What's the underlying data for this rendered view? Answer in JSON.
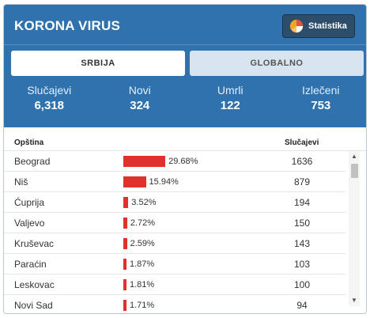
{
  "header": {
    "title": "KORONA VIRUS",
    "stat_button_label": "Statistika",
    "icon": "pie-chart-icon"
  },
  "tabs": [
    {
      "label": "SRBIJA",
      "active": true
    },
    {
      "label": "GLOBALNO",
      "active": false
    }
  ],
  "summary": [
    {
      "label": "Slučajevi",
      "value": "6,318"
    },
    {
      "label": "Novi",
      "value": "324"
    },
    {
      "label": "Umrli",
      "value": "122"
    },
    {
      "label": "Izlečeni",
      "value": "753"
    }
  ],
  "table": {
    "columns": {
      "name": "Opština",
      "cases": "Slučajevi"
    },
    "rows": [
      {
        "name": "Beograd",
        "pct": "29.68%",
        "pct_value": 29.68,
        "cases": "1636"
      },
      {
        "name": "Niš",
        "pct": "15.94%",
        "pct_value": 15.94,
        "cases": "879"
      },
      {
        "name": "Ćuprija",
        "pct": "3.52%",
        "pct_value": 3.52,
        "cases": "194"
      },
      {
        "name": "Valjevo",
        "pct": "2.72%",
        "pct_value": 2.72,
        "cases": "150"
      },
      {
        "name": "Kruševac",
        "pct": "2.59%",
        "pct_value": 2.59,
        "cases": "143"
      },
      {
        "name": "Paraćin",
        "pct": "1.87%",
        "pct_value": 1.87,
        "cases": "103"
      },
      {
        "name": "Leskovac",
        "pct": "1.81%",
        "pct_value": 1.81,
        "cases": "100"
      },
      {
        "name": "Novi Sad",
        "pct": "1.71%",
        "pct_value": 1.71,
        "cases": "94"
      }
    ]
  },
  "colors": {
    "header_bg": "#2f72ad",
    "bar": "#e0312c",
    "button_bg": "#2d4e6b"
  }
}
